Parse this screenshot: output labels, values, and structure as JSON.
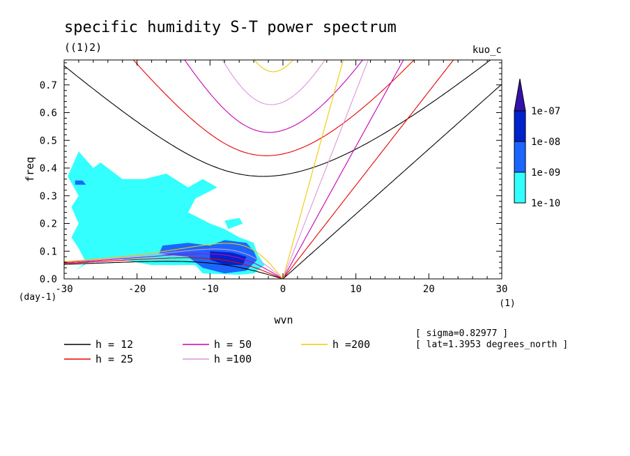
{
  "chart_data": {
    "type": "line",
    "title": "specific humidity S-T power spectrum",
    "subtitle": "((1)2)",
    "run_label": "kuo_c",
    "xlabel": "wvn",
    "ylabel": "freq",
    "x_units": "(1)",
    "y_units": "(day-1)",
    "xlim": [
      -30,
      30
    ],
    "ylim": [
      0,
      0.79
    ],
    "x_ticks": [
      -30,
      -20,
      -10,
      0,
      10,
      20,
      30
    ],
    "y_ticks": [
      0.0,
      0.1,
      0.2,
      0.3,
      0.4,
      0.5,
      0.6,
      0.7
    ],
    "x_tick_labels": [
      "-30",
      "-20",
      "-10",
      "0",
      "10",
      "20",
      "30"
    ],
    "y_tick_labels": [
      "0.0",
      "0.1",
      "0.2",
      "0.3",
      "0.4",
      "0.5",
      "0.6",
      "0.7"
    ],
    "annotations": [
      "[ sigma=0.82977 ]",
      "[ lat=1.3953 degrees_north ]"
    ],
    "colorbar": {
      "labels": [
        "1e-10",
        "1e-09",
        "1e-08",
        "1e-07"
      ],
      "colors": [
        "#33ffff",
        "#1a66ff",
        "#0022cc",
        "#3311aa"
      ]
    },
    "series": [
      {
        "name": "h = 12",
        "legend_label": "h = 12",
        "color": "#000000",
        "h": 12,
        "min_freq": 0.37
      },
      {
        "name": "h = 25",
        "legend_label": "h = 25",
        "color": "#e80000",
        "h": 25,
        "min_freq": 0.44
      },
      {
        "name": "h = 50",
        "legend_label": "h = 50",
        "color": "#c800b4",
        "h": 50,
        "min_freq": 0.53
      },
      {
        "name": "h =100",
        "legend_label": "h =100",
        "color": "#dc96dc",
        "h": 100,
        "min_freq": 0.63
      },
      {
        "name": "h =200",
        "legend_label": "h =200",
        "color": "#f0c800",
        "h": 200,
        "min_freq": 0.75
      }
    ],
    "power_regions": [
      {
        "level": "1e-10",
        "color": "#33ffff",
        "polygon": [
          [
            -28.5,
            0.03
          ],
          [
            -27,
            0.06
          ],
          [
            -28,
            0.11
          ],
          [
            -29,
            0.15
          ],
          [
            -28,
            0.2
          ],
          [
            -29,
            0.26
          ],
          [
            -28,
            0.3
          ],
          [
            -29.5,
            0.37
          ],
          [
            -28,
            0.46
          ],
          [
            -26,
            0.4
          ],
          [
            -25,
            0.42
          ],
          [
            -22,
            0.36
          ],
          [
            -19,
            0.36
          ],
          [
            -16,
            0.38
          ],
          [
            -13,
            0.33
          ],
          [
            -11,
            0.36
          ],
          [
            -9,
            0.33
          ],
          [
            -12,
            0.29
          ],
          [
            -13,
            0.24
          ],
          [
            -10,
            0.2
          ],
          [
            -8,
            0.18
          ],
          [
            -6,
            0.15
          ],
          [
            -4,
            0.13
          ],
          [
            -3.5,
            0.09
          ],
          [
            -2.5,
            0.05
          ],
          [
            -4,
            0.02
          ],
          [
            -6,
            0.015
          ],
          [
            -11,
            0.02
          ],
          [
            -12,
            0.05
          ],
          [
            -18,
            0.05
          ],
          [
            -22,
            0.07
          ],
          [
            -26,
            0.07
          ]
        ]
      },
      {
        "level": "1e-10",
        "color": "#33ffff",
        "polygon": [
          [
            -7.5,
            0.18
          ],
          [
            -5.5,
            0.2
          ],
          [
            -6,
            0.22
          ],
          [
            -8,
            0.21
          ]
        ]
      },
      {
        "level": "1e-09",
        "color": "#1a66ff",
        "polygon": [
          [
            -16.5,
            0.12
          ],
          [
            -13,
            0.13
          ],
          [
            -10,
            0.12
          ],
          [
            -8,
            0.14
          ],
          [
            -5,
            0.13
          ],
          [
            -4,
            0.1
          ],
          [
            -3.5,
            0.07
          ],
          [
            -5,
            0.03
          ],
          [
            -8,
            0.02
          ],
          [
            -11,
            0.04
          ],
          [
            -13,
            0.08
          ],
          [
            -17,
            0.09
          ]
        ]
      },
      {
        "level": "1e-09",
        "color": "#1a66ff",
        "polygon": [
          [
            -28.5,
            0.34
          ],
          [
            -27,
            0.34
          ],
          [
            -27.5,
            0.355
          ],
          [
            -28.5,
            0.355
          ]
        ]
      },
      {
        "level": "1e-08",
        "color": "#0022cc",
        "polygon": [
          [
            -10,
            0.1
          ],
          [
            -7,
            0.095
          ],
          [
            -5,
            0.08
          ],
          [
            -5.5,
            0.05
          ],
          [
            -8,
            0.05
          ],
          [
            -10,
            0.07
          ]
        ]
      }
    ]
  }
}
